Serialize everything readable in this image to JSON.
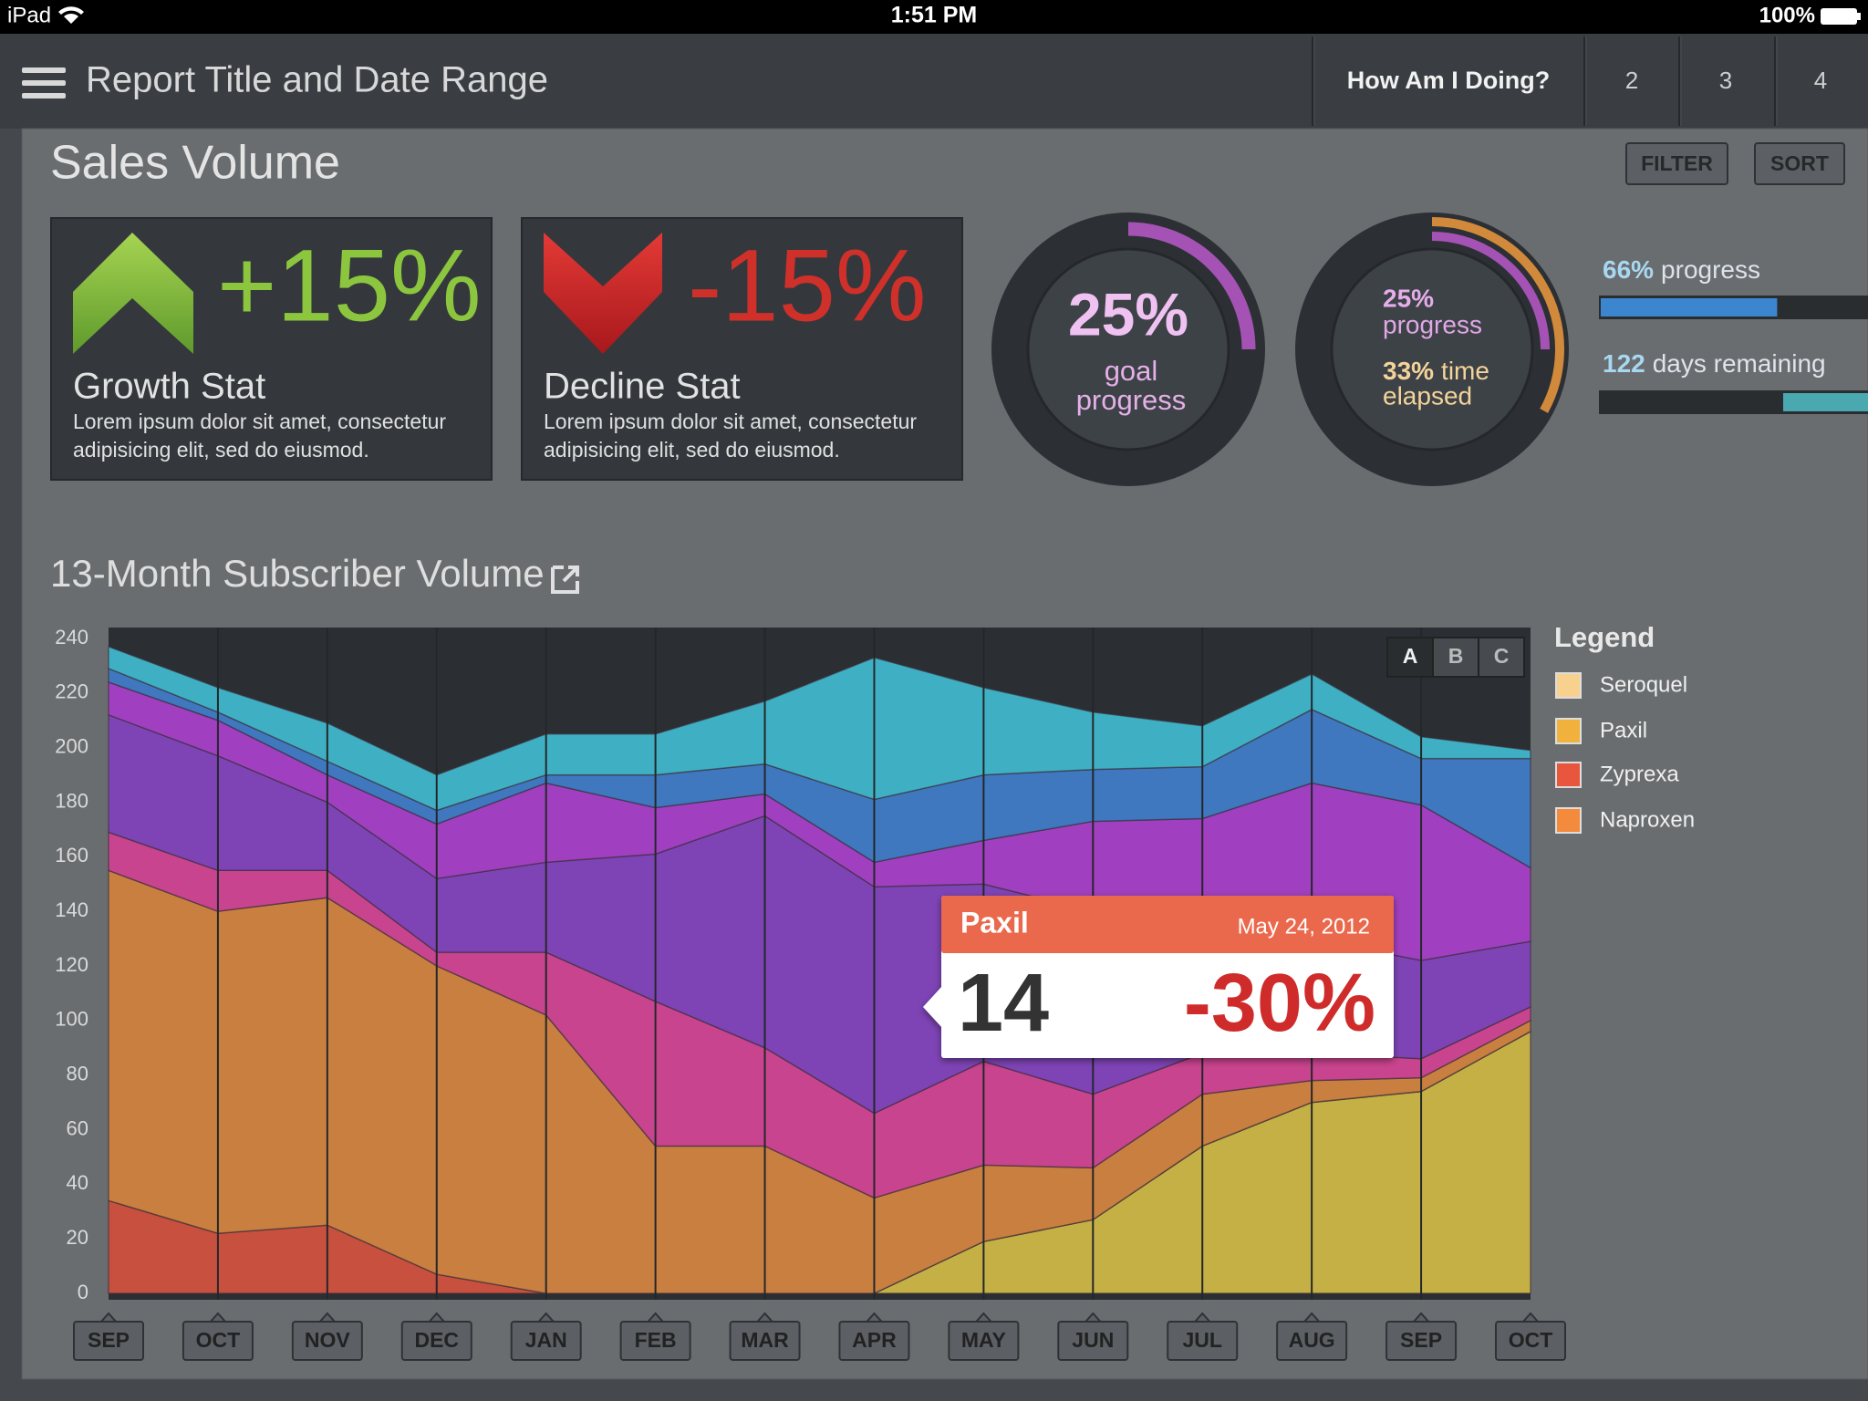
{
  "status_bar": {
    "device": "iPad",
    "time": "1:51 PM",
    "battery": "100%"
  },
  "header": {
    "title": "Report Title and Date Range",
    "tabs": [
      "How Am I Doing?",
      "2",
      "3",
      "4"
    ]
  },
  "panel": {
    "title": "Sales Volume",
    "buttons": [
      "FILTER",
      "SORT"
    ]
  },
  "stats": [
    {
      "value_label": "+15%",
      "title": "Growth Stat",
      "text": [
        "Lorem ipsum dolor sit amet, consectetur",
        "adipisicing elit, sed do eiusmod."
      ]
    },
    {
      "value_label": "-15%",
      "title": "Decline Stat",
      "text": [
        "Lorem ipsum dolor sit amet, consectetur",
        "adipisicing elit, sed do eiusmod."
      ]
    }
  ],
  "rings": [
    {
      "arcs": [
        {
          "value": 25,
          "value_label": "25%",
          "label": [
            "goal",
            "progress"
          ],
          "color": "#a552b5"
        }
      ]
    },
    {
      "arcs": [
        {
          "value": 25,
          "value_label": "25%",
          "label": [
            "progress"
          ],
          "color": "#a552b5"
        },
        {
          "value": 33,
          "value_label": "33%",
          "label": [
            "time",
            "elapsed"
          ],
          "color": "#d18a3c"
        }
      ]
    }
  ],
  "bars": [
    {
      "value": 66,
      "value_label": "66%",
      "label": "progress",
      "color": "#3c86d0"
    },
    {
      "value": 122,
      "label": "days remaining",
      "color": "#4aa8b0"
    }
  ],
  "chart_data": {
    "type": "area",
    "stacked": true,
    "title": "13-Month Subscriber Volume",
    "categories": [
      "SEP",
      "OCT",
      "NOV",
      "DEC",
      "JAN",
      "FEB",
      "MAR",
      "APR",
      "MAY",
      "JUN",
      "JUL",
      "AUG",
      "SEP",
      "OCT"
    ],
    "series": [
      {
        "color": "#c4b045",
        "values": [
          0,
          0,
          0,
          0,
          0,
          0,
          0,
          0,
          19,
          27,
          54,
          70,
          74,
          96
        ]
      },
      {
        "color": "#c8503e",
        "values": [
          34,
          22,
          25,
          7,
          0,
          0,
          0,
          0,
          0,
          0,
          0,
          0,
          0,
          0
        ]
      },
      {
        "color": "#c97f40",
        "values": [
          121,
          118,
          120,
          113,
          102,
          54,
          54,
          35,
          28,
          19,
          19,
          8,
          5,
          4
        ]
      },
      {
        "color": "#c9448e",
        "values": [
          14,
          15,
          10,
          5,
          23,
          53,
          36,
          31,
          38,
          27,
          15,
          10,
          7,
          5
        ]
      },
      {
        "color": "#7e44b6",
        "values": [
          43,
          42,
          25,
          27,
          33,
          54,
          85,
          83,
          65,
          67,
          47,
          42,
          36,
          24
        ]
      },
      {
        "color": "#a040c0",
        "values": [
          12,
          13,
          10,
          20,
          29,
          17,
          8,
          9,
          16,
          33,
          39,
          57,
          57,
          27
        ]
      },
      {
        "color": "#3f78bf",
        "values": [
          5,
          3,
          5,
          5,
          3,
          12,
          11,
          23,
          24,
          19,
          19,
          27,
          17,
          40
        ]
      },
      {
        "color": "#3fb0c4",
        "values": [
          8,
          9,
          14,
          13,
          15,
          15,
          23,
          52,
          32,
          21,
          15,
          13,
          8,
          3
        ]
      }
    ],
    "ylim": [
      0,
      240
    ],
    "yticks": [
      0,
      20,
      40,
      60,
      80,
      100,
      120,
      140,
      160,
      180,
      200,
      220,
      240
    ],
    "grid": false,
    "options": [
      "A",
      "B",
      "C"
    ],
    "legend_title": "Legend",
    "legend": [
      {
        "name": "Seroquel",
        "color": "#f9d18f"
      },
      {
        "name": "Paxil",
        "color": "#f0b23c"
      },
      {
        "name": "Zyprexa",
        "color": "#e8563e"
      },
      {
        "name": "Naproxen",
        "color": "#f48a3c"
      }
    ]
  },
  "tooltip": {
    "title": "Paxil",
    "date": "May 24, 2012",
    "value": "14",
    "change": "-30%"
  }
}
